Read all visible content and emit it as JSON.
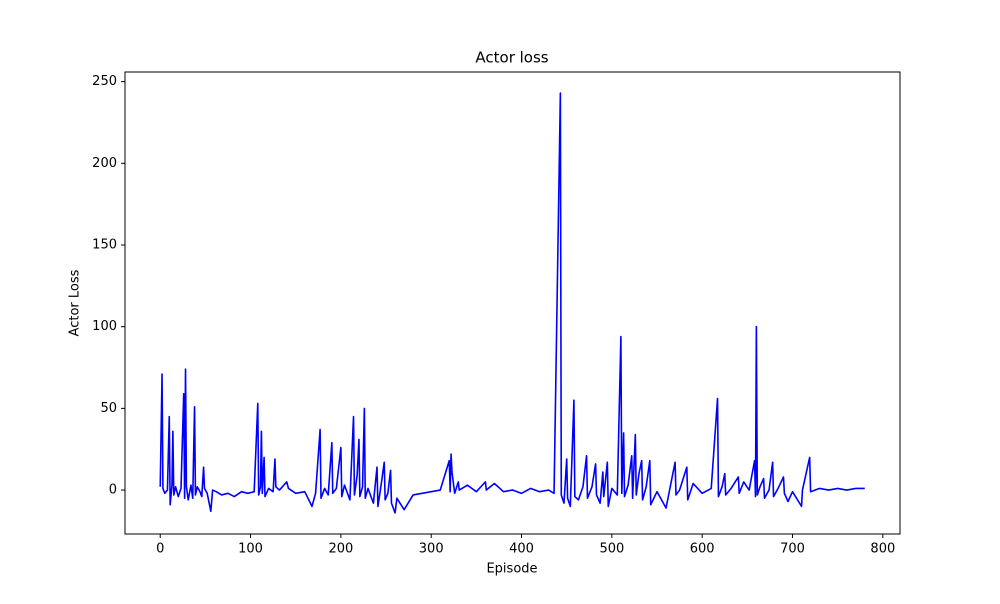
{
  "chart_data": {
    "type": "line",
    "title": "Actor loss",
    "x_label": "Episode",
    "y_label": "Actor Loss",
    "x": [
      0,
      2,
      3,
      5,
      8,
      10,
      11,
      13,
      14,
      15,
      17,
      20,
      23,
      26,
      27,
      28,
      29,
      31,
      34,
      36,
      38,
      39,
      41,
      44,
      46,
      48,
      49,
      52,
      56,
      58,
      62,
      68,
      75,
      82,
      90,
      97,
      104,
      108,
      109,
      111,
      112,
      113,
      115,
      116,
      120,
      125,
      127,
      128,
      132,
      140,
      142,
      150,
      160,
      168,
      172,
      177,
      178,
      182,
      186,
      190,
      191,
      195,
      200,
      201,
      204,
      210,
      214,
      215,
      218,
      220,
      221,
      224,
      226,
      227,
      230,
      236,
      240,
      241,
      244,
      248,
      249,
      252,
      255,
      256,
      260,
      262,
      270,
      280,
      290,
      300,
      310,
      320,
      321,
      322,
      323,
      326,
      330,
      331,
      340,
      350,
      360,
      361,
      370,
      380,
      390,
      400,
      410,
      420,
      430,
      436,
      443,
      444,
      447,
      450,
      451,
      454,
      458,
      459,
      463,
      468,
      472,
      473,
      478,
      482,
      483,
      487,
      490,
      491,
      495,
      496,
      500,
      506,
      510,
      511,
      513,
      514,
      518,
      522,
      523,
      526,
      527,
      530,
      533,
      534,
      538,
      542,
      543,
      550,
      560,
      570,
      571,
      575,
      583,
      584,
      590,
      600,
      610,
      617,
      618,
      622,
      625,
      626,
      632,
      640,
      641,
      646,
      652,
      658,
      659,
      660,
      661,
      664,
      668,
      669,
      674,
      678,
      679,
      684,
      690,
      691,
      695,
      700,
      710,
      711,
      719,
      720,
      730,
      740,
      750,
      760,
      770,
      780
    ],
    "series": [
      {
        "name": "Actor loss",
        "color": "#0000ff",
        "values": [
          2,
          71,
          1,
          -2,
          0,
          45,
          -9,
          3,
          36,
          -3,
          2,
          -4,
          1,
          59,
          -5,
          74,
          2,
          -6,
          3,
          -5,
          51,
          -3,
          2,
          -1,
          -4,
          14,
          1,
          -2,
          -13,
          0,
          -1,
          -3,
          -2,
          -4,
          -1,
          -2,
          -1,
          53,
          -3,
          2,
          36,
          -2,
          20,
          -4,
          1,
          -1,
          19,
          2,
          0,
          5,
          1,
          -2,
          -1,
          -10,
          -2,
          37,
          -5,
          1,
          -3,
          29,
          -2,
          1,
          26,
          -4,
          3,
          -6,
          45,
          -3,
          9,
          31,
          -4,
          2,
          50,
          -5,
          1,
          -8,
          14,
          -10,
          1,
          17,
          -6,
          -2,
          12,
          -8,
          -14,
          -5,
          -12,
          -3,
          -2,
          -1,
          0,
          18,
          -1,
          22,
          11,
          -2,
          5,
          0,
          3,
          -1,
          5,
          0,
          4,
          -1,
          0,
          -2,
          1,
          -1,
          0,
          -2,
          243,
          -3,
          -8,
          19,
          -5,
          -10,
          55,
          -4,
          -6,
          2,
          21,
          -5,
          2,
          16,
          -3,
          -8,
          11,
          -4,
          17,
          -10,
          1,
          -3,
          94,
          -2,
          35,
          -4,
          3,
          21,
          -5,
          34,
          -3,
          10,
          18,
          -6,
          2,
          18,
          -9,
          -1,
          -11,
          17,
          -3,
          0,
          14,
          -6,
          4,
          -2,
          1,
          56,
          -4,
          2,
          10,
          -3,
          1,
          8,
          -2,
          5,
          0,
          18,
          -4,
          100,
          -3,
          2,
          7,
          -5,
          0,
          17,
          -4,
          1,
          8,
          -2,
          -7,
          -1,
          -10,
          0,
          20,
          -1,
          1,
          0,
          1,
          0,
          1,
          1
        ]
      }
    ],
    "xlim": [
      -39,
      819
    ],
    "ylim": [
      -26.9,
      255.9
    ],
    "xticks": [
      0,
      100,
      200,
      300,
      400,
      500,
      600,
      700,
      800
    ],
    "yticks": [
      0,
      50,
      100,
      150,
      200,
      250
    ]
  }
}
